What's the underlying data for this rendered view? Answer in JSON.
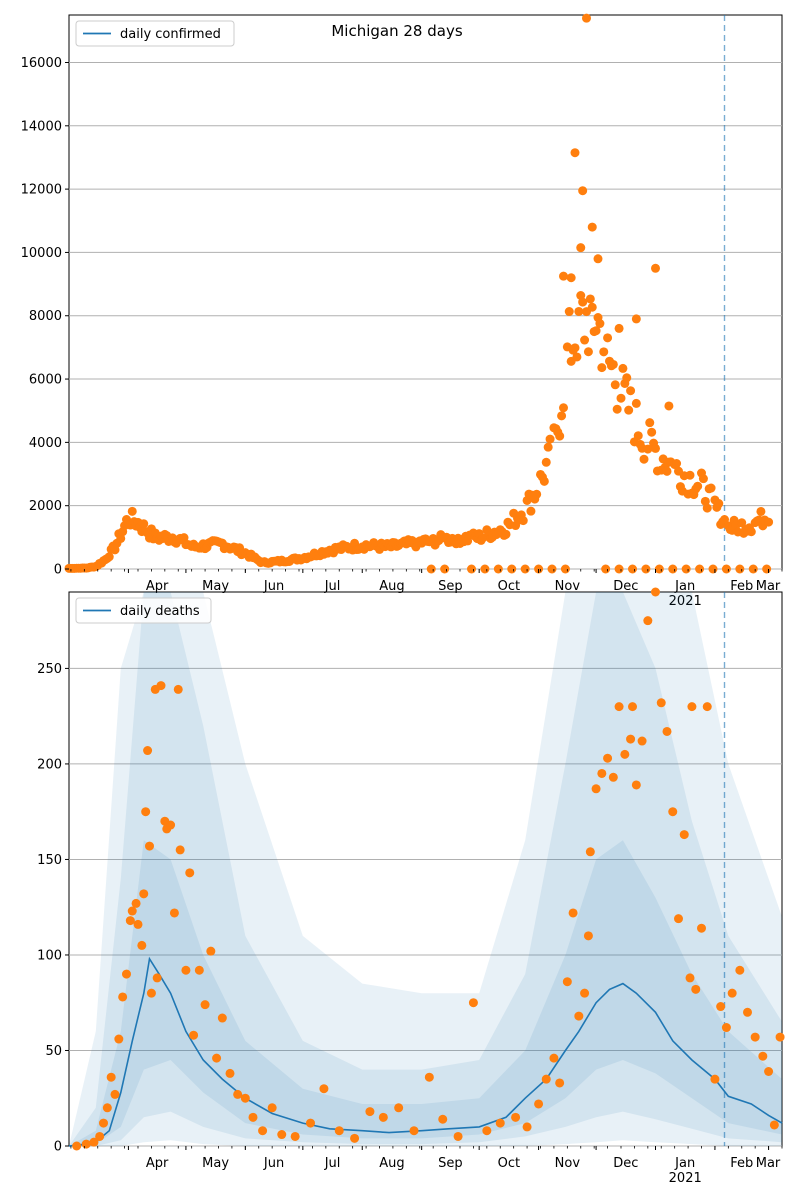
{
  "chart_data": [
    {
      "type": "scatter",
      "title": "Michigan 28 days",
      "xlabel": "",
      "ylabel": "",
      "ylim": [
        0,
        17500
      ],
      "y_ticks": [
        0,
        2000,
        4000,
        6000,
        8000,
        10000,
        12000,
        14000,
        16000
      ],
      "x_tick_labels": [
        "Apr",
        "May",
        "Jun",
        "Jul",
        "Aug",
        "Sep",
        "Oct",
        "Nov",
        "Dec",
        "Jan",
        "Feb",
        "Mar"
      ],
      "x_year_label": "2021",
      "grid": "horizontal",
      "legend_placement": "top-left",
      "series": [
        {
          "name": "daily confirmed",
          "kind": "line",
          "color": "#1f77b4"
        },
        {
          "kind": "points",
          "color": "#ff7f0e",
          "anchors_date": [
            "2020-03-01",
            "2020-03-10",
            "2020-03-15",
            "2020-03-20",
            "2020-03-25",
            "2020-04-01",
            "2020-04-05",
            "2020-04-15",
            "2020-04-25",
            "2020-05-05",
            "2020-05-20",
            "2020-06-01",
            "2020-06-10",
            "2020-06-20",
            "2020-07-01",
            "2020-07-15",
            "2020-08-01",
            "2020-08-15",
            "2020-09-01",
            "2020-09-15",
            "2020-10-01",
            "2020-10-15",
            "2020-10-25",
            "2020-11-01",
            "2020-11-10",
            "2020-11-16",
            "2020-11-22",
            "2020-12-01",
            "2020-12-08",
            "2020-12-15",
            "2020-12-25",
            "2021-01-05",
            "2021-01-15",
            "2021-01-25",
            "2021-02-01",
            "2021-02-08",
            "2021-02-20",
            "2021-03-01"
          ],
          "anchors_value": [
            20,
            30,
            80,
            300,
            700,
            1600,
            1500,
            1000,
            1000,
            700,
            800,
            500,
            200,
            250,
            350,
            600,
            750,
            700,
            850,
            950,
            1000,
            1300,
            1900,
            2600,
            4000,
            6800,
            7800,
            8000,
            6500,
            5500,
            4200,
            3500,
            3000,
            2600,
            2000,
            1300,
            1400,
            1700
          ]
        },
        {
          "kind": "outliers",
          "color": "#ff7f0e",
          "points": [
            [
              "2020-11-26",
              17400
            ],
            [
              "2020-11-20",
              13150
            ],
            [
              "2020-11-24",
              11950
            ],
            [
              "2020-11-29",
              10800
            ],
            [
              "2020-11-23",
              10150
            ],
            [
              "2020-12-02",
              9800
            ],
            [
              "2021-01-01",
              9500
            ],
            [
              "2020-11-14",
              9250
            ],
            [
              "2020-11-18",
              9200
            ],
            [
              "2020-12-22",
              7900
            ],
            [
              "2020-12-13",
              7600
            ],
            [
              "2021-01-08",
              5150
            ]
          ]
        }
      ],
      "forecast_start_date": "2021-02-06",
      "x_start_date": "2020-03-01",
      "x_end_date": "2021-03-08"
    },
    {
      "type": "line",
      "title": "",
      "xlabel": "",
      "ylabel": "",
      "ylim": [
        0,
        290
      ],
      "y_ticks": [
        0,
        50,
        100,
        150,
        200,
        250
      ],
      "x_tick_labels": [
        "Apr",
        "May",
        "Jun",
        "Jul",
        "Aug",
        "Sep",
        "Oct",
        "Nov",
        "Dec",
        "Jan",
        "Feb",
        "Mar"
      ],
      "x_year_label": "2021",
      "grid": "horizontal",
      "legend_placement": "top-left",
      "series": [
        {
          "name": "daily deaths",
          "kind": "line",
          "color": "#1f77b4",
          "x": [
            "2020-03-01",
            "2020-03-10",
            "2020-03-16",
            "2020-03-22",
            "2020-03-28",
            "2020-04-03",
            "2020-04-09",
            "2020-04-12",
            "2020-04-17",
            "2020-04-23",
            "2020-05-01",
            "2020-05-10",
            "2020-05-20",
            "2020-06-01",
            "2020-06-15",
            "2020-07-01",
            "2020-07-15",
            "2020-08-01",
            "2020-08-15",
            "2020-09-01",
            "2020-09-15",
            "2020-10-01",
            "2020-10-15",
            "2020-10-25",
            "2020-11-05",
            "2020-11-15",
            "2020-11-22",
            "2020-12-01",
            "2020-12-08",
            "2020-12-15",
            "2020-12-22",
            "2021-01-01",
            "2021-01-10",
            "2021-01-20",
            "2021-02-01",
            "2021-02-08",
            "2021-02-20",
            "2021-03-01",
            "2021-03-08"
          ],
          "values": [
            0,
            1,
            3,
            8,
            28,
            55,
            80,
            98,
            90,
            80,
            60,
            45,
            35,
            25,
            17,
            12,
            9,
            8,
            7,
            8,
            9,
            10,
            15,
            25,
            35,
            50,
            60,
            75,
            82,
            85,
            80,
            70,
            55,
            45,
            35,
            26,
            22,
            16,
            12
          ]
        },
        {
          "kind": "band",
          "level": "inner",
          "color": "#1f77b4",
          "x": [
            "2020-03-01",
            "2020-03-15",
            "2020-03-28",
            "2020-04-09",
            "2020-04-23",
            "2020-05-10",
            "2020-06-01",
            "2020-07-01",
            "2020-08-01",
            "2020-09-01",
            "2020-10-01",
            "2020-10-25",
            "2020-11-15",
            "2020-12-01",
            "2020-12-15",
            "2021-01-01",
            "2021-01-20",
            "2021-02-08",
            "2021-03-08"
          ],
          "lower": [
            0,
            1,
            10,
            40,
            45,
            28,
            12,
            6,
            4,
            4,
            6,
            12,
            25,
            40,
            45,
            38,
            25,
            12,
            6
          ],
          "upper": [
            0,
            8,
            60,
            160,
            150,
            100,
            55,
            30,
            22,
            22,
            25,
            50,
            100,
            150,
            160,
            130,
            90,
            60,
            35
          ]
        },
        {
          "kind": "band",
          "level": "middle",
          "color": "#1f77b4",
          "x": [
            "2020-03-01",
            "2020-03-15",
            "2020-03-28",
            "2020-04-09",
            "2020-04-23",
            "2020-05-10",
            "2020-06-01",
            "2020-07-01",
            "2020-08-01",
            "2020-09-01",
            "2020-10-01",
            "2020-10-25",
            "2020-11-15",
            "2020-12-01",
            "2020-12-15",
            "2021-01-01",
            "2021-01-20",
            "2021-02-08",
            "2021-03-08"
          ],
          "lower": [
            0,
            0,
            3,
            15,
            18,
            10,
            4,
            2,
            1,
            1,
            2,
            5,
            10,
            15,
            18,
            14,
            9,
            4,
            2
          ],
          "upper": [
            0,
            20,
            140,
            290,
            290,
            220,
            110,
            55,
            40,
            40,
            45,
            90,
            200,
            290,
            290,
            250,
            170,
            110,
            65
          ]
        },
        {
          "kind": "band",
          "level": "outer",
          "color": "#1f77b4",
          "x": [
            "2020-03-01",
            "2020-03-15",
            "2020-03-28",
            "2020-04-09",
            "2020-04-23",
            "2020-05-10",
            "2020-06-01",
            "2020-07-01",
            "2020-08-01",
            "2020-09-01",
            "2020-10-01",
            "2020-10-25",
            "2020-11-15",
            "2020-12-01",
            "2020-12-15",
            "2021-01-01",
            "2021-01-20",
            "2021-02-08",
            "2021-03-08"
          ],
          "lower": [
            0,
            0,
            0,
            2,
            3,
            1,
            0,
            0,
            0,
            0,
            0,
            0,
            1,
            2,
            3,
            2,
            1,
            0,
            0
          ],
          "upper": [
            0,
            60,
            250,
            290,
            290,
            290,
            200,
            110,
            85,
            80,
            80,
            160,
            290,
            290,
            290,
            290,
            290,
            200,
            120
          ]
        },
        {
          "kind": "points",
          "color": "#ff7f0e",
          "x": [
            "2020-03-05",
            "2020-03-10",
            "2020-03-14",
            "2020-03-17",
            "2020-03-19",
            "2020-03-21",
            "2020-03-23",
            "2020-03-25",
            "2020-03-27",
            "2020-03-29",
            "2020-03-31",
            "2020-04-02",
            "2020-04-03",
            "2020-04-05",
            "2020-04-06",
            "2020-04-08",
            "2020-04-09",
            "2020-04-10",
            "2020-04-12",
            "2020-04-13",
            "2020-04-15",
            "2020-04-16",
            "2020-04-18",
            "2020-04-20",
            "2020-04-21",
            "2020-04-23",
            "2020-04-25",
            "2020-04-28",
            "2020-05-01",
            "2020-05-03",
            "2020-05-05",
            "2020-05-08",
            "2020-05-11",
            "2020-05-14",
            "2020-05-17",
            "2020-05-20",
            "2020-05-24",
            "2020-05-28",
            "2020-06-01",
            "2020-06-05",
            "2020-06-10",
            "2020-06-15",
            "2020-06-20",
            "2020-06-27",
            "2020-07-05",
            "2020-07-12",
            "2020-07-20",
            "2020-07-28",
            "2020-08-05",
            "2020-08-12",
            "2020-08-20",
            "2020-08-28",
            "2020-09-05",
            "2020-09-12",
            "2020-09-20",
            "2020-09-28",
            "2020-10-05",
            "2020-10-12",
            "2020-10-20",
            "2020-10-26",
            "2020-11-01",
            "2020-11-05",
            "2020-11-09",
            "2020-11-12",
            "2020-11-16",
            "2020-11-19",
            "2020-11-22",
            "2020-11-25",
            "2020-11-28",
            "2020-12-01",
            "2020-12-04",
            "2020-12-07",
            "2020-12-10",
            "2020-12-13",
            "2020-12-16",
            "2020-12-19",
            "2020-12-22",
            "2020-12-25",
            "2020-12-28",
            "2021-01-01",
            "2021-01-04",
            "2021-01-07",
            "2021-01-10",
            "2021-01-13",
            "2021-01-16",
            "2021-01-19",
            "2021-01-22",
            "2021-01-25",
            "2021-01-28",
            "2021-02-01",
            "2021-02-04",
            "2021-02-07",
            "2021-02-10",
            "2021-02-14",
            "2021-02-18",
            "2021-02-22",
            "2021-02-26",
            "2021-03-01",
            "2021-03-04",
            "2021-03-07"
          ],
          "values": [
            0,
            1,
            2,
            5,
            12,
            20,
            36,
            27,
            56,
            78,
            90,
            118,
            123,
            127,
            116,
            105,
            132,
            175,
            157,
            80,
            239,
            88,
            241,
            170,
            166,
            168,
            122,
            155,
            92,
            143,
            58,
            92,
            74,
            102,
            46,
            67,
            38,
            27,
            25,
            15,
            8,
            20,
            6,
            5,
            12,
            30,
            8,
            4,
            18,
            15,
            20,
            8,
            36,
            14,
            5,
            75,
            8,
            12,
            15,
            10,
            22,
            35,
            46,
            33,
            86,
            122,
            68,
            80,
            154,
            187,
            195,
            203,
            193,
            230,
            205,
            213,
            189,
            212,
            275,
            290,
            232,
            217,
            175,
            119,
            163,
            88,
            82,
            114,
            230,
            35,
            73,
            62,
            80,
            92,
            70,
            57,
            47,
            39,
            11,
            57
          ]
        },
        {
          "kind": "outliers",
          "color": "#ff7f0e",
          "points": [
            [
              "2020-04-11",
              207
            ],
            [
              "2020-04-27",
              239
            ],
            [
              "2020-12-20",
              230
            ],
            [
              "2021-01-20",
              230
            ],
            [
              "2020-11-27",
              110
            ]
          ]
        }
      ],
      "forecast_start_date": "2021-02-06",
      "x_start_date": "2020-03-01",
      "x_end_date": "2021-03-08"
    }
  ]
}
